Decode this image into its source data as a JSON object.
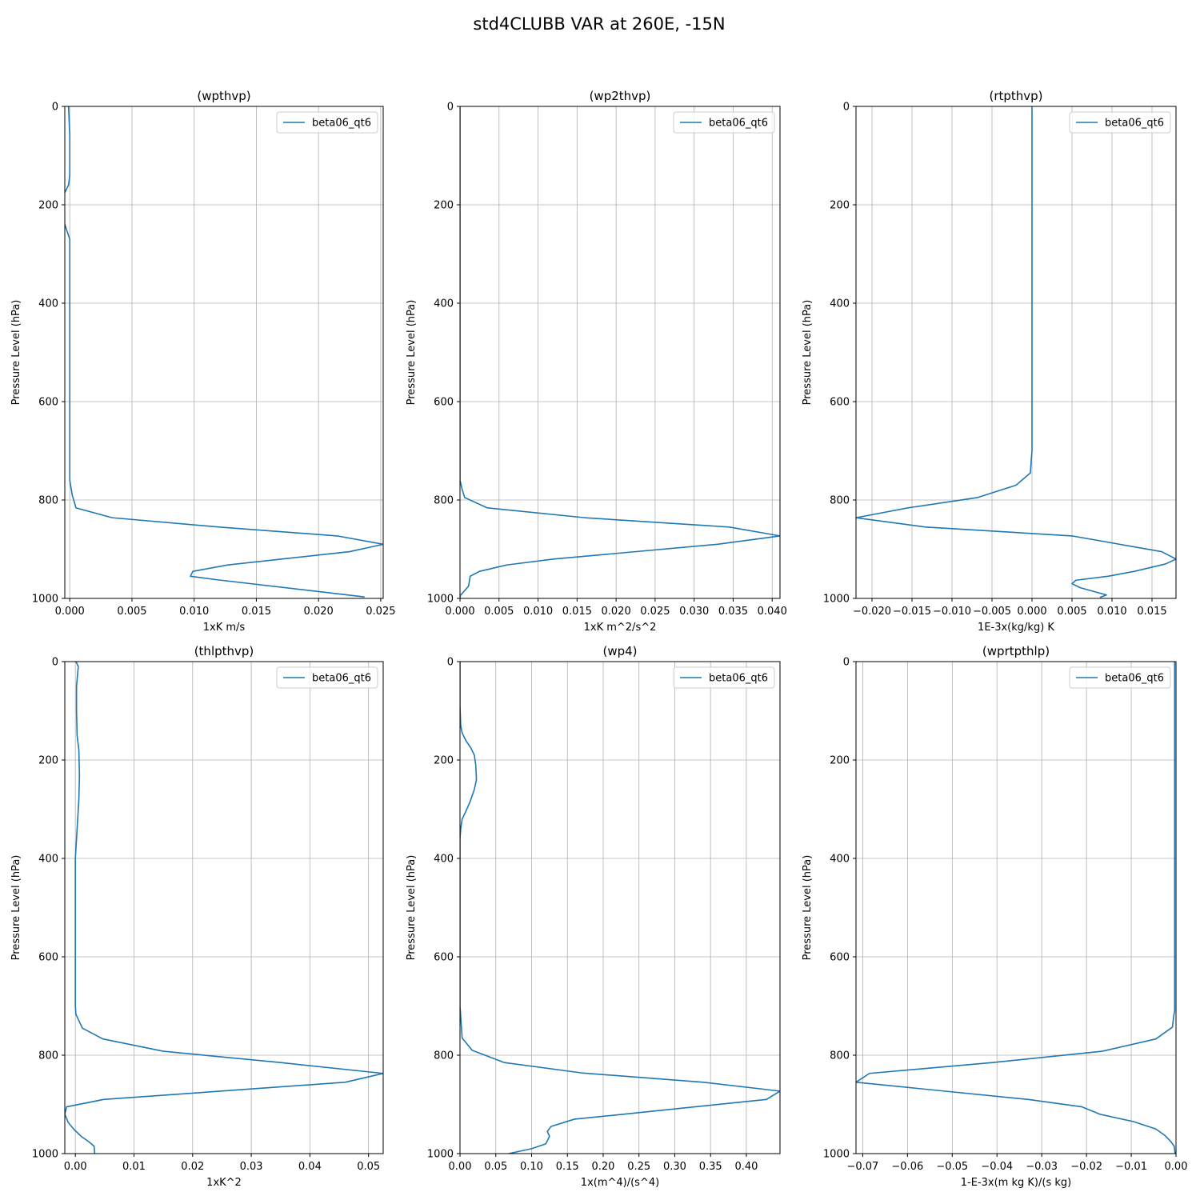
{
  "figure_title": "std4CLUBB VAR at 260E, -15N",
  "chart_data": [
    {
      "type": "line",
      "title": "(wpthvp)",
      "xlabel": "1xK m/s",
      "ylabel": "Pressure Level (hPa)",
      "xlim": [
        -0.0004,
        0.0252
      ],
      "ylim": [
        1000,
        0
      ],
      "xticks": [
        0.0,
        0.005,
        0.01,
        0.015,
        0.02,
        0.025
      ],
      "xticklabels": [
        "0.000",
        "0.005",
        "0.010",
        "0.015",
        "0.020",
        "0.025"
      ],
      "yticks": [
        0,
        200,
        400,
        600,
        800,
        1000
      ],
      "yticklabels": [
        "0",
        "200",
        "400",
        "600",
        "800",
        "1000"
      ],
      "grid": true,
      "legend_position": "upper right",
      "series": [
        {
          "name": "beta06_qt6",
          "x": [
            -0.0001,
            0.0,
            0.0,
            -0.0001,
            -0.0005,
            -0.0006,
            -0.0004,
            0.0,
            0.0,
            0.0,
            0.0,
            0.0,
            0.0,
            0.0,
            0.0,
            0.0002,
            0.0005,
            0.0034,
            0.012,
            0.0215,
            0.0252,
            0.0225,
            0.0127,
            0.0099,
            0.0097,
            0.0118,
            0.022,
            0.0237
          ],
          "y": [
            0,
            60,
            140,
            160,
            180,
            210,
            240,
            270,
            300,
            400,
            500,
            600,
            700,
            720,
            760,
            790,
            816,
            836,
            855,
            873,
            890,
            905,
            932,
            945,
            955,
            962,
            992,
            997
          ]
        }
      ]
    },
    {
      "type": "line",
      "title": "(wp2thvp)",
      "xlabel": "1xK m^2/s^2",
      "ylabel": "Pressure Level (hPa)",
      "xlim": [
        0.0,
        0.041
      ],
      "ylim": [
        1000,
        0
      ],
      "xticks": [
        0.0,
        0.005,
        0.01,
        0.015,
        0.02,
        0.025,
        0.03,
        0.035,
        0.04
      ],
      "xticklabels": [
        "0.000",
        "0.005",
        "0.010",
        "0.015",
        "0.020",
        "0.025",
        "0.030",
        "0.035",
        "0.040"
      ],
      "yticks": [
        0,
        200,
        400,
        600,
        800,
        1000
      ],
      "yticklabels": [
        "0",
        "200",
        "400",
        "600",
        "800",
        "1000"
      ],
      "grid": true,
      "legend_position": "upper right",
      "series": [
        {
          "name": "beta06_qt6",
          "x": [
            0.0,
            0.0,
            0.0,
            0.0,
            0.0,
            0.0,
            0.0003,
            0.0006,
            0.0035,
            0.016,
            0.0345,
            0.041,
            0.033,
            0.012,
            0.006,
            0.0025,
            0.0013,
            0.0011,
            0.0,
            0.0
          ],
          "y": [
            0,
            200,
            400,
            600,
            700,
            760,
            780,
            795,
            816,
            836,
            855,
            873,
            890,
            920,
            932,
            945,
            955,
            975,
            995,
            1000
          ]
        }
      ]
    },
    {
      "type": "line",
      "title": "(rtpthvp)",
      "xlabel": "1E-3x(kg/kg) K",
      "ylabel": "Pressure Level (hPa)",
      "xlim": [
        -0.022,
        0.018
      ],
      "ylim": [
        1000,
        0
      ],
      "xticks": [
        -0.02,
        -0.015,
        -0.01,
        -0.005,
        0.0,
        0.005,
        0.01,
        0.015
      ],
      "xticklabels": [
        "−0.020",
        "−0.015",
        "−0.010",
        "−0.005",
        "0.000",
        "0.005",
        "0.010",
        "0.015"
      ],
      "yticks": [
        0,
        200,
        400,
        600,
        800,
        1000
      ],
      "yticklabels": [
        "0",
        "200",
        "400",
        "600",
        "800",
        "1000"
      ],
      "grid": true,
      "legend_position": "upper right",
      "series": [
        {
          "name": "beta06_qt6",
          "x": [
            0.0,
            0.0,
            0.0,
            0.0,
            0.0,
            -0.0001,
            -0.0002,
            -0.002,
            -0.0068,
            -0.0155,
            -0.022,
            -0.0133,
            0.005,
            0.0162,
            0.018,
            0.0167,
            0.0128,
            0.0095,
            0.0055,
            0.005,
            0.006,
            0.0075,
            0.0093,
            0.0085
          ],
          "y": [
            0,
            200,
            400,
            600,
            700,
            720,
            745,
            770,
            795,
            816,
            836,
            855,
            873,
            905,
            920,
            930,
            945,
            955,
            963,
            970,
            978,
            985,
            993,
            998
          ]
        }
      ]
    },
    {
      "type": "line",
      "title": "(thlpthvp)",
      "xlabel": "1xK^2",
      "ylabel": "Pressure Level (hPa)",
      "xlim": [
        -0.0018,
        0.0525
      ],
      "ylim": [
        1000,
        0
      ],
      "xticks": [
        0.0,
        0.01,
        0.02,
        0.03,
        0.04,
        0.05
      ],
      "xticklabels": [
        "0.00",
        "0.01",
        "0.02",
        "0.03",
        "0.04",
        "0.05"
      ],
      "yticks": [
        0,
        200,
        400,
        600,
        800,
        1000
      ],
      "yticklabels": [
        "0",
        "200",
        "400",
        "600",
        "800",
        "1000"
      ],
      "grid": true,
      "legend_position": "upper right",
      "series": [
        {
          "name": "beta06_qt6",
          "x": [
            0.0001,
            0.0005,
            0.0002,
            0.0002,
            0.0003,
            0.0006,
            0.0007,
            0.0006,
            0.0003,
            0.0001,
            0.0,
            0.0,
            0.0,
            0.0,
            0.0001,
            0.0012,
            0.0047,
            0.015,
            0.035,
            0.0525,
            0.046,
            0.0048,
            -0.0015,
            -0.0018,
            -0.0012,
            -0.0003,
            0.001,
            0.0022,
            0.0032,
            0.0033
          ],
          "y": [
            0,
            10,
            50,
            100,
            150,
            180,
            230,
            280,
            340,
            380,
            400,
            500,
            600,
            700,
            717,
            745,
            767,
            792,
            815,
            837,
            855,
            890,
            905,
            920,
            937,
            950,
            965,
            975,
            985,
            1000
          ]
        }
      ]
    },
    {
      "type": "line",
      "title": "(wp4)",
      "xlabel": "1x(m^4)/(s^4)",
      "ylabel": "Pressure Level (hPa)",
      "xlim": [
        0.0,
        0.447
      ],
      "ylim": [
        1000,
        0
      ],
      "xticks": [
        0.0,
        0.05,
        0.1,
        0.15,
        0.2,
        0.25,
        0.3,
        0.35,
        0.4
      ],
      "xticklabels": [
        "0.00",
        "0.05",
        "0.10",
        "0.15",
        "0.20",
        "0.25",
        "0.30",
        "0.35",
        "0.40"
      ],
      "yticks": [
        0,
        200,
        400,
        600,
        800,
        1000
      ],
      "yticklabels": [
        "0",
        "200",
        "400",
        "600",
        "800",
        "1000"
      ],
      "grid": true,
      "legend_position": "upper right",
      "series": [
        {
          "name": "beta06_qt6",
          "x": [
            0.0,
            0.0,
            0.001,
            0.003,
            0.008,
            0.015,
            0.02,
            0.022,
            0.023,
            0.02,
            0.014,
            0.008,
            0.003,
            0.001,
            0.0,
            0.0,
            0.0,
            0.0,
            0.0,
            0.003,
            0.017,
            0.062,
            0.17,
            0.34,
            0.447,
            0.428,
            0.228,
            0.16,
            0.127,
            0.122,
            0.125,
            0.12,
            0.1,
            0.068
          ],
          "y": [
            0,
            90,
            130,
            145,
            160,
            175,
            190,
            210,
            240,
            260,
            285,
            305,
            320,
            340,
            360,
            400,
            500,
            600,
            700,
            765,
            790,
            815,
            836,
            855,
            873,
            890,
            920,
            930,
            945,
            955,
            965,
            980,
            990,
            1000
          ]
        }
      ]
    },
    {
      "type": "line",
      "title": "(wprtpthlp)",
      "xlabel": "1-E-3x(m kg K)/(s kg)",
      "ylabel": "Pressure Level (hPa)",
      "xlim": [
        -0.0715,
        0.0
      ],
      "ylim": [
        1000,
        0
      ],
      "xticks": [
        -0.07,
        -0.06,
        -0.05,
        -0.04,
        -0.03,
        -0.02,
        -0.01,
        0.0
      ],
      "xticklabels": [
        "−0.07",
        "−0.06",
        "−0.05",
        "−0.04",
        "−0.03",
        "−0.02",
        "−0.01",
        "0.00"
      ],
      "yticks": [
        0,
        200,
        400,
        600,
        800,
        1000
      ],
      "yticklabels": [
        "0",
        "200",
        "400",
        "600",
        "800",
        "1000"
      ],
      "grid": true,
      "legend_position": "upper right",
      "series": [
        {
          "name": "beta06_qt6",
          "x": [
            -0.0003,
            -0.0003,
            -0.0003,
            -0.0003,
            -0.0003,
            -0.0003,
            -0.0005,
            -0.0008,
            -0.0045,
            -0.0165,
            -0.041,
            -0.0685,
            -0.0715,
            -0.033,
            -0.021,
            -0.017,
            -0.0095,
            -0.0045,
            -0.0025,
            -0.0012,
            -0.0004,
            -0.0002
          ],
          "y": [
            0,
            200,
            400,
            600,
            700,
            710,
            720,
            743,
            767,
            792,
            815,
            837,
            855,
            890,
            905,
            920,
            935,
            950,
            963,
            975,
            985,
            1000
          ]
        }
      ]
    }
  ]
}
